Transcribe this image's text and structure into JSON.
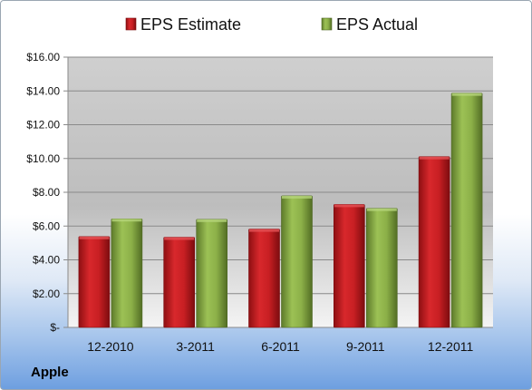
{
  "company": "Apple",
  "colors": {
    "estimate": "#c0191d",
    "actual": "#85a83f"
  },
  "chart_data": {
    "type": "bar",
    "title": "",
    "xlabel": "",
    "ylabel": "",
    "categories": [
      "12-2010",
      "3-2011",
      "6-2011",
      "9-2011",
      "12-2011"
    ],
    "series": [
      {
        "name": "EPS Estimate",
        "values": [
          5.38,
          5.34,
          5.82,
          7.28,
          10.11
        ]
      },
      {
        "name": "EPS Actual",
        "values": [
          6.43,
          6.4,
          7.79,
          7.05,
          13.87
        ]
      }
    ],
    "ylim": [
      0,
      16
    ],
    "yticks": [
      0,
      2,
      4,
      6,
      8,
      10,
      12,
      14,
      16
    ],
    "ytick_labels": [
      "$-",
      "$2.00",
      "$4.00",
      "$6.00",
      "$8.00",
      "$10.00",
      "$12.00",
      "$14.00",
      "$16.00"
    ],
    "grid": true,
    "legend_position": "top"
  }
}
